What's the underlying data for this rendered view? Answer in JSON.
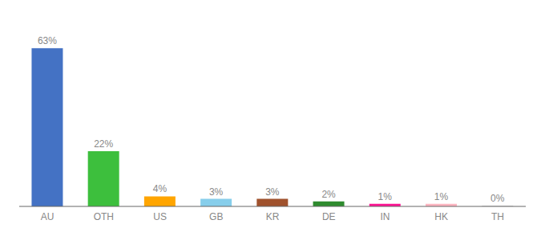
{
  "chart_data": {
    "type": "bar",
    "categories": [
      "AU",
      "OTH",
      "US",
      "GB",
      "KR",
      "DE",
      "IN",
      "HK",
      "TH"
    ],
    "values": [
      63,
      22,
      4,
      3,
      3,
      2,
      1,
      1,
      0.3
    ],
    "value_labels": [
      "63%",
      "22%",
      "4%",
      "3%",
      "3%",
      "2%",
      "1%",
      "1%",
      "0%"
    ],
    "colors": [
      "#4472C4",
      "#3DBF3D",
      "#FFA500",
      "#87CEEB",
      "#A0522D",
      "#2E8B2E",
      "#FF1493",
      "#FFB6C1",
      "#D3D3D3"
    ],
    "ylim": [
      0,
      72
    ],
    "data_labels": true,
    "tick_labels": "x",
    "grid": false
  }
}
